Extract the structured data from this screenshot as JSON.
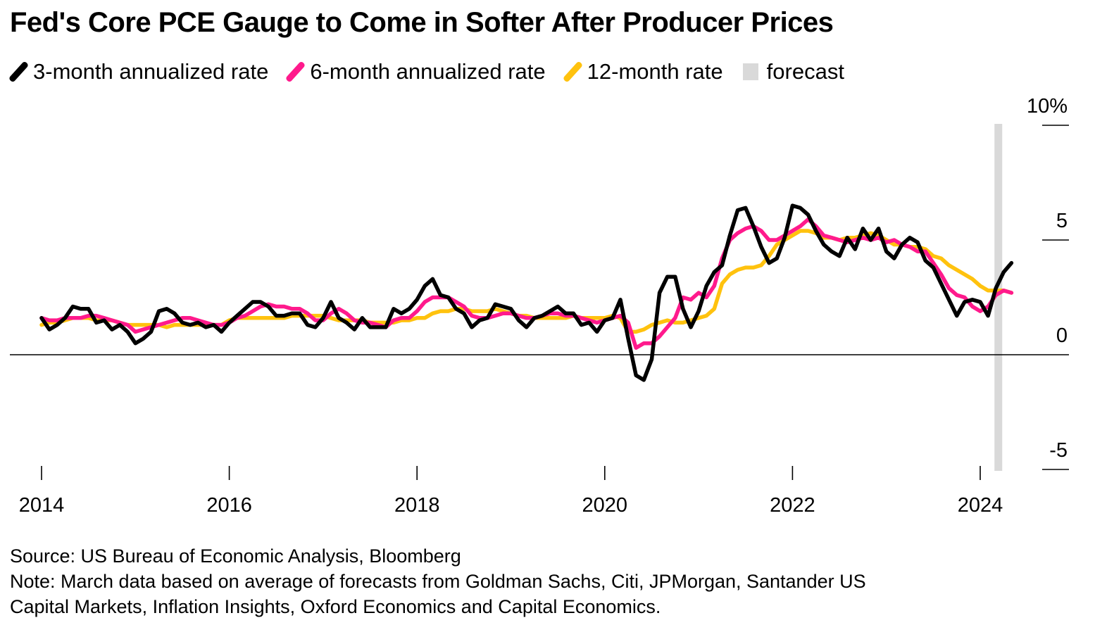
{
  "title": "Fed's Core PCE Gauge to Come in Softer After Producer Prices",
  "legend": [
    {
      "label": "3-month annualized rate",
      "color": "#000000",
      "kind": "line"
    },
    {
      "label": "6-month annualized rate",
      "color": "#ff1a8c",
      "kind": "line"
    },
    {
      "label": "12-month rate",
      "color": "#ffc20e",
      "kind": "line"
    },
    {
      "label": "forecast",
      "color": "#d9d9d9",
      "kind": "box"
    }
  ],
  "footer": {
    "source": "Source: US Bureau of Economic Analysis, Bloomberg",
    "note_line1": "Note: March data based on average of forecasts from Goldman Sachs, Citi, JPMorgan, Santander US",
    "note_line2": "Capital Markets, Inflation Insights, Oxford Economics and Capital Economics."
  },
  "chart_data": {
    "type": "line",
    "x_start": "2014-01",
    "x_end": "2024-03",
    "frequency": "monthly",
    "xlim": [
      2014.0,
      2025.0
    ],
    "ylim": [
      -5,
      10
    ],
    "y_ticks": [
      {
        "value": 10,
        "label": "10%"
      },
      {
        "value": 5,
        "label": "5"
      },
      {
        "value": 0,
        "label": "0"
      },
      {
        "value": -5,
        "label": "-5"
      }
    ],
    "x_ticks": [
      {
        "value": 2014,
        "label": "2014"
      },
      {
        "value": 2016,
        "label": "2016"
      },
      {
        "value": 2018,
        "label": "2018"
      },
      {
        "value": 2020,
        "label": "2020"
      },
      {
        "value": 2022,
        "label": "2022"
      },
      {
        "value": 2024,
        "label": "2024"
      }
    ],
    "forecast_period": "2024-03",
    "series": [
      {
        "name": "3-month annualized rate",
        "color": "#000000",
        "values": [
          1.6,
          1.1,
          1.3,
          1.6,
          2.1,
          2.0,
          2.0,
          1.4,
          1.5,
          1.1,
          1.3,
          1.0,
          0.5,
          0.7,
          1.0,
          1.9,
          2.0,
          1.8,
          1.4,
          1.3,
          1.4,
          1.2,
          1.3,
          1.0,
          1.4,
          1.7,
          2.0,
          2.3,
          2.3,
          2.1,
          1.7,
          1.7,
          1.8,
          1.8,
          1.3,
          1.2,
          1.6,
          2.3,
          1.6,
          1.4,
          1.1,
          1.6,
          1.2,
          1.2,
          1.2,
          2.0,
          1.8,
          2.0,
          2.4,
          3.0,
          3.3,
          2.6,
          2.5,
          2.0,
          1.8,
          1.2,
          1.5,
          1.6,
          2.2,
          2.1,
          2.0,
          1.5,
          1.2,
          1.6,
          1.7,
          1.9,
          2.1,
          1.8,
          1.8,
          1.3,
          1.4,
          1.0,
          1.5,
          1.6,
          2.4,
          0.7,
          -0.9,
          -1.1,
          -0.2,
          2.7,
          3.4,
          3.4,
          2.0,
          1.2,
          1.9,
          3.0,
          3.6,
          3.9,
          5.2,
          6.3,
          6.4,
          5.6,
          4.7,
          4.0,
          4.2,
          5.1,
          6.5,
          6.4,
          6.1,
          5.4,
          4.8,
          4.5,
          4.3,
          5.1,
          4.6,
          5.5,
          5.0,
          5.5,
          4.5,
          4.2,
          4.8,
          5.1,
          4.9,
          4.1,
          3.8,
          3.1,
          2.4,
          1.7,
          2.3,
          2.4,
          2.3,
          1.7,
          2.9,
          3.6,
          4.0
        ]
      },
      {
        "name": "6-month annualized rate",
        "color": "#ff1a8c",
        "values": [
          1.6,
          1.5,
          1.5,
          1.6,
          1.6,
          1.6,
          1.7,
          1.7,
          1.6,
          1.5,
          1.4,
          1.3,
          1.0,
          1.1,
          1.2,
          1.3,
          1.4,
          1.5,
          1.6,
          1.6,
          1.5,
          1.4,
          1.3,
          1.3,
          1.4,
          1.6,
          1.7,
          1.9,
          2.1,
          2.2,
          2.1,
          2.1,
          2.0,
          2.0,
          1.8,
          1.5,
          1.5,
          1.8,
          2.0,
          1.8,
          1.5,
          1.4,
          1.4,
          1.3,
          1.2,
          1.5,
          1.6,
          1.6,
          1.9,
          2.3,
          2.5,
          2.5,
          2.5,
          2.3,
          2.1,
          1.7,
          1.6,
          1.6,
          1.7,
          1.8,
          1.8,
          1.7,
          1.6,
          1.6,
          1.7,
          1.8,
          1.8,
          1.7,
          1.7,
          1.6,
          1.5,
          1.4,
          1.5,
          1.6,
          1.7,
          1.4,
          0.3,
          0.5,
          0.5,
          0.8,
          1.2,
          1.6,
          2.5,
          2.4,
          2.7,
          2.5,
          3.0,
          4.2,
          5.0,
          5.3,
          5.5,
          5.6,
          5.4,
          5.0,
          5.0,
          5.2,
          5.4,
          5.6,
          5.9,
          5.6,
          5.2,
          5.1,
          5.0,
          4.9,
          5.0,
          5.1,
          5.0,
          5.1,
          4.9,
          5.0,
          4.8,
          4.7,
          4.5,
          4.5,
          4.0,
          3.5,
          2.9,
          2.6,
          2.5,
          2.1,
          1.9,
          2.1,
          2.6,
          2.8,
          2.7
        ]
      },
      {
        "name": "12-month rate",
        "color": "#ffc20e",
        "values": [
          1.3,
          1.4,
          1.4,
          1.5,
          1.6,
          1.6,
          1.6,
          1.5,
          1.5,
          1.5,
          1.4,
          1.3,
          1.3,
          1.3,
          1.3,
          1.3,
          1.2,
          1.3,
          1.3,
          1.3,
          1.3,
          1.3,
          1.3,
          1.3,
          1.5,
          1.6,
          1.6,
          1.6,
          1.6,
          1.6,
          1.6,
          1.6,
          1.7,
          1.7,
          1.7,
          1.7,
          1.7,
          1.6,
          1.5,
          1.5,
          1.5,
          1.5,
          1.4,
          1.4,
          1.4,
          1.4,
          1.5,
          1.5,
          1.6,
          1.6,
          1.8,
          1.9,
          1.9,
          2.0,
          2.0,
          1.9,
          1.9,
          1.9,
          2.0,
          1.9,
          1.8,
          1.7,
          1.7,
          1.6,
          1.6,
          1.6,
          1.6,
          1.6,
          1.7,
          1.6,
          1.6,
          1.6,
          1.6,
          1.7,
          1.6,
          1.0,
          1.0,
          1.1,
          1.3,
          1.4,
          1.5,
          1.4,
          1.4,
          1.5,
          1.6,
          1.7,
          2.0,
          3.1,
          3.5,
          3.7,
          3.8,
          3.8,
          3.9,
          4.3,
          4.8,
          5.0,
          5.2,
          5.4,
          5.4,
          5.3,
          5.1,
          5.1,
          5.0,
          5.1,
          5.1,
          5.2,
          5.3,
          5.2,
          5.0,
          4.8,
          4.8,
          4.7,
          4.7,
          4.6,
          4.3,
          4.2,
          3.9,
          3.7,
          3.5,
          3.3,
          3.0,
          2.8,
          2.8,
          2.8,
          2.7
        ]
      }
    ]
  }
}
